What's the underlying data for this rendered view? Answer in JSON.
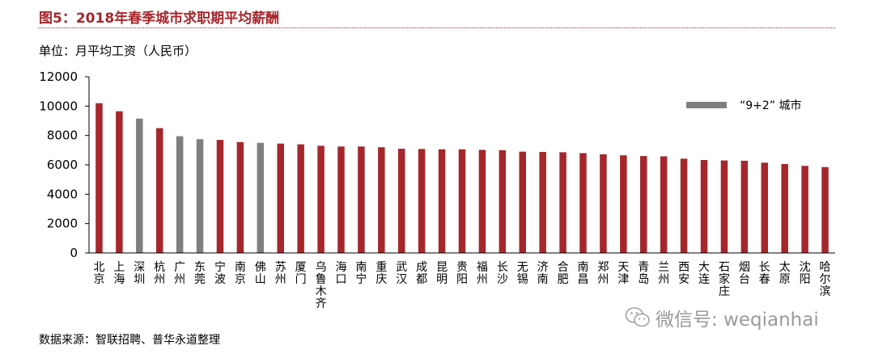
{
  "header": {
    "title": "图5：2018年春季城市求职期平均薪酬",
    "unit_label": "单位：月平均工资（人民币）"
  },
  "footer": {
    "source": "数据来源：智联招聘、普华永道整理"
  },
  "watermark": {
    "text": "微信号: weqianhai",
    "icon": "wechat-icon"
  },
  "colors": {
    "default_bar": "#a5272c",
    "highlight_bar": "#7f7f7f",
    "title": "#a5272c",
    "axis": "#000000"
  },
  "chart_data": {
    "type": "bar",
    "title": "图5：2018年春季城市求职期平均薪酬",
    "ylabel": "单位：月平均工资（人民币）",
    "xlabel": "",
    "ylim": [
      0,
      12000
    ],
    "yticks": [
      0,
      2000,
      4000,
      6000,
      8000,
      10000,
      12000
    ],
    "grid": false,
    "legend": {
      "position": "top-right",
      "entries": [
        {
          "label": "“9+2” 城市",
          "color": "#7f7f7f"
        }
      ]
    },
    "categories": [
      "北京",
      "上海",
      "深圳",
      "杭州",
      "广州",
      "东莞",
      "宁波",
      "南京",
      "佛山",
      "苏州",
      "厦门",
      "乌鲁木齐",
      "海口",
      "南宁",
      "重庆",
      "武汉",
      "成都",
      "昆明",
      "贵阳",
      "福州",
      "长沙",
      "无锡",
      "济南",
      "合肥",
      "南昌",
      "郑州",
      "天津",
      "青岛",
      "兰州",
      "西安",
      "大连",
      "石家庄",
      "烟台",
      "长春",
      "太原",
      "沈阳",
      "哈尔滨"
    ],
    "values": [
      10200,
      9650,
      9150,
      8500,
      7950,
      7750,
      7700,
      7550,
      7500,
      7450,
      7400,
      7300,
      7250,
      7250,
      7200,
      7100,
      7080,
      7060,
      7060,
      7020,
      7000,
      6900,
      6880,
      6860,
      6800,
      6720,
      6650,
      6600,
      6580,
      6420,
      6330,
      6300,
      6280,
      6150,
      6060,
      5930,
      5850
    ],
    "highlight": [
      false,
      false,
      true,
      false,
      true,
      true,
      false,
      false,
      true,
      false,
      false,
      false,
      false,
      false,
      false,
      false,
      false,
      false,
      false,
      false,
      false,
      false,
      false,
      false,
      false,
      false,
      false,
      false,
      false,
      false,
      false,
      false,
      false,
      false,
      false,
      false,
      false
    ]
  }
}
